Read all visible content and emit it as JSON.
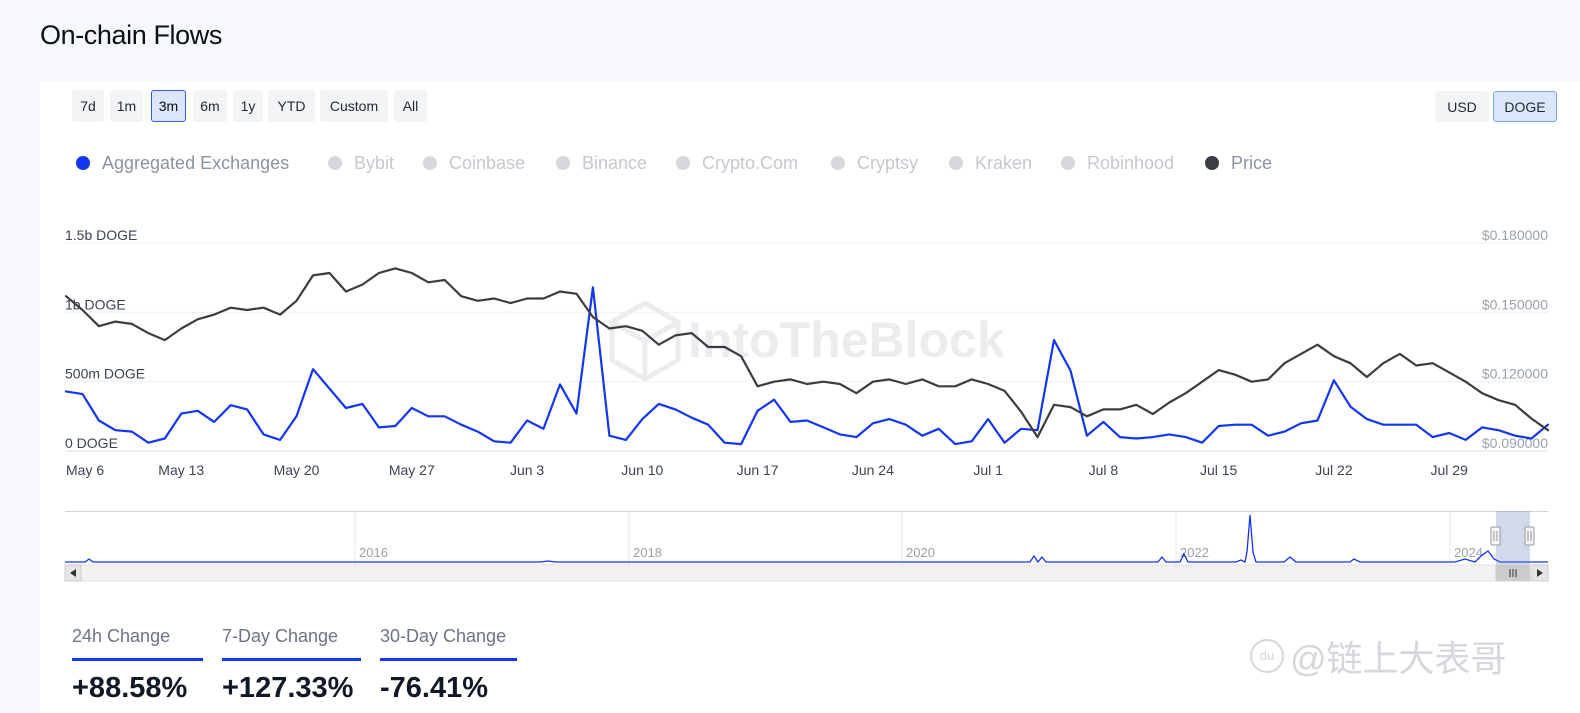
{
  "page": {
    "title": "On-chain Flows"
  },
  "time_range": {
    "buttons": [
      {
        "label": "7d",
        "active": false
      },
      {
        "label": "1m",
        "active": false
      },
      {
        "label": "3m",
        "active": true
      },
      {
        "label": "6m",
        "active": false
      },
      {
        "label": "1y",
        "active": false
      },
      {
        "label": "YTD",
        "active": false
      },
      {
        "label": "Custom",
        "active": false
      },
      {
        "label": "All",
        "active": false
      }
    ]
  },
  "unit_toggle": {
    "usd_label": "USD",
    "doge_label": "DOGE",
    "selected": "DOGE"
  },
  "legend": {
    "items": [
      {
        "label": "Aggregated Exchanges",
        "enabled": true,
        "color": "#1336f0"
      },
      {
        "label": "Bybit",
        "enabled": false
      },
      {
        "label": "Coinbase",
        "enabled": false
      },
      {
        "label": "Binance",
        "enabled": false
      },
      {
        "label": "Crypto.Com",
        "enabled": false
      },
      {
        "label": "Cryptsy",
        "enabled": false
      },
      {
        "label": "Kraken",
        "enabled": false
      },
      {
        "label": "Robinhood",
        "enabled": false
      },
      {
        "label": "Price",
        "enabled": true,
        "color": "#3a3d42"
      }
    ]
  },
  "chart_data": {
    "type": "line",
    "left_axis": {
      "ticks": [
        "0 DOGE",
        "500m DOGE",
        "1b DOGE",
        "1.5b DOGE"
      ],
      "tick_values": [
        0,
        500,
        1000,
        1500
      ],
      "unit": "million DOGE",
      "ylim": [
        0,
        1500
      ]
    },
    "right_axis": {
      "ticks": [
        "$0.090000",
        "$0.120000",
        "$0.150000",
        "$0.180000"
      ],
      "tick_values": [
        0.09,
        0.12,
        0.15,
        0.18
      ],
      "ylim": [
        0.09,
        0.18
      ]
    },
    "x_tick_labels": [
      "May 6",
      "May 13",
      "May 20",
      "May 27",
      "Jun 3",
      "Jun 10",
      "Jun 17",
      "Jun 24",
      "Jul 1",
      "Jul 8",
      "Jul 15",
      "Jul 22",
      "Jul 29"
    ],
    "x_tick_days": [
      0,
      7,
      14,
      21,
      28,
      35,
      42,
      49,
      56,
      63,
      70,
      77,
      84
    ],
    "x_range_days": [
      0,
      90
    ],
    "grid": true,
    "series": [
      {
        "name": "Aggregated Exchanges",
        "axis": "left",
        "color": "#1336f0",
        "x": [
          0,
          1,
          2,
          3,
          4,
          5,
          6,
          7,
          8,
          9,
          10,
          11,
          12,
          13,
          14,
          15,
          16,
          17,
          18,
          19,
          20,
          21,
          22,
          23,
          24,
          25,
          26,
          27,
          28,
          29,
          30,
          31,
          32,
          33,
          34,
          35,
          36,
          37,
          38,
          39,
          40,
          41,
          42,
          43,
          44,
          45,
          46,
          47,
          48,
          49,
          50,
          51,
          52,
          53,
          54,
          55,
          56,
          57,
          58,
          59,
          60,
          61,
          62,
          63,
          64,
          65,
          66,
          67,
          68,
          69,
          70,
          71,
          72,
          73,
          74,
          75,
          76,
          77,
          78,
          79,
          80,
          81,
          82,
          83,
          84,
          85,
          86,
          87,
          88,
          89,
          90
        ],
        "y": [
          430,
          410,
          220,
          150,
          140,
          60,
          90,
          270,
          290,
          210,
          330,
          300,
          120,
          80,
          250,
          590,
          450,
          310,
          340,
          170,
          180,
          310,
          250,
          250,
          190,
          140,
          70,
          60,
          220,
          160,
          480,
          270,
          1180,
          110,
          80,
          230,
          340,
          300,
          240,
          190,
          60,
          50,
          290,
          370,
          210,
          220,
          170,
          120,
          100,
          200,
          230,
          190,
          110,
          160,
          50,
          70,
          230,
          60,
          160,
          150,
          800,
          580,
          110,
          210,
          100,
          90,
          100,
          120,
          100,
          60,
          180,
          190,
          190,
          110,
          140,
          200,
          220,
          510,
          320,
          230,
          190,
          190,
          190,
          100,
          130,
          80,
          170,
          150,
          110,
          90,
          190
        ]
      },
      {
        "name": "Price",
        "axis": "right",
        "color": "#3a3d42",
        "x": [
          0,
          1,
          2,
          3,
          4,
          5,
          6,
          7,
          8,
          9,
          10,
          11,
          12,
          13,
          14,
          15,
          16,
          17,
          18,
          19,
          20,
          21,
          22,
          23,
          24,
          25,
          26,
          27,
          28,
          29,
          30,
          31,
          32,
          33,
          34,
          35,
          36,
          37,
          38,
          39,
          40,
          41,
          42,
          43,
          44,
          45,
          46,
          47,
          48,
          49,
          50,
          51,
          52,
          53,
          54,
          55,
          56,
          57,
          58,
          59,
          60,
          61,
          62,
          63,
          64,
          65,
          66,
          67,
          68,
          69,
          70,
          71,
          72,
          73,
          74,
          75,
          76,
          77,
          78,
          79,
          80,
          81,
          82,
          83,
          84,
          85,
          86,
          87,
          88,
          89,
          90
        ],
        "y": [
          0.157,
          0.151,
          0.144,
          0.146,
          0.145,
          0.141,
          0.138,
          0.143,
          0.147,
          0.149,
          0.152,
          0.151,
          0.152,
          0.149,
          0.155,
          0.166,
          0.167,
          0.159,
          0.162,
          0.167,
          0.169,
          0.167,
          0.163,
          0.164,
          0.157,
          0.155,
          0.156,
          0.154,
          0.156,
          0.156,
          0.159,
          0.158,
          0.148,
          0.143,
          0.144,
          0.142,
          0.136,
          0.14,
          0.141,
          0.135,
          0.135,
          0.131,
          0.118,
          0.12,
          0.121,
          0.119,
          0.12,
          0.119,
          0.115,
          0.12,
          0.121,
          0.119,
          0.121,
          0.118,
          0.118,
          0.121,
          0.119,
          0.116,
          0.107,
          0.096,
          0.11,
          0.109,
          0.105,
          0.108,
          0.108,
          0.11,
          0.106,
          0.111,
          0.115,
          0.12,
          0.125,
          0.123,
          0.12,
          0.121,
          0.128,
          0.132,
          0.136,
          0.131,
          0.128,
          0.122,
          0.128,
          0.132,
          0.127,
          0.128,
          0.124,
          0.12,
          0.115,
          0.112,
          0.11,
          0.104,
          0.099
        ]
      }
    ]
  },
  "navigator": {
    "year_labels": [
      "2016",
      "2018",
      "2020",
      "2022",
      "2024"
    ],
    "scroll_left_icon": "arrow-left",
    "scroll_right_icon": "arrow-right",
    "grip_icon": "grip-lines"
  },
  "watermark": {
    "text": "IntoTheBlock"
  },
  "stats": [
    {
      "label": "24h Change",
      "value": "+88.58%"
    },
    {
      "label": "7-Day Change",
      "value": "+127.33%"
    },
    {
      "label": "30-Day Change",
      "value": "-76.41%"
    }
  ],
  "image_watermark": {
    "logo_text": "du",
    "text": "@链上大表哥"
  }
}
